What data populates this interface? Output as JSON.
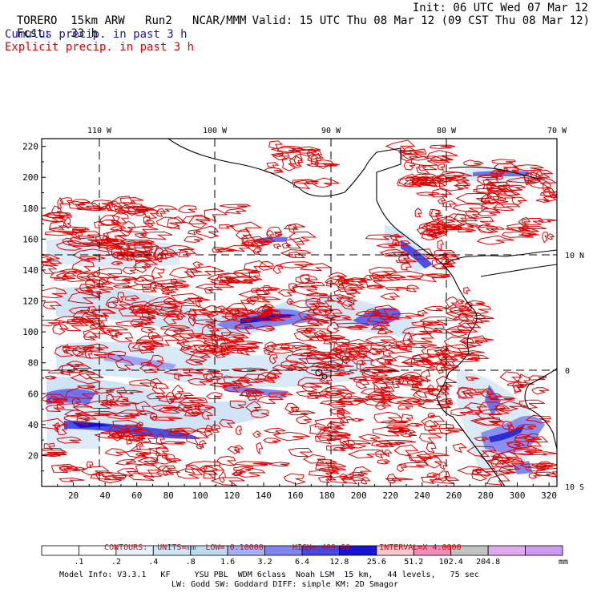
{
  "header": {
    "model_name": "TORERO",
    "resolution": "15km ARW",
    "run": "Run2",
    "org": "NCAR/MMM",
    "init": "Init: 06 UTC Wed 07 Mar 12",
    "fcst_label": "Fcst:",
    "fcst_value": "33 h",
    "valid": "Valid: 15 UTC Thu 08 Mar 12 (09 CST Thu 08 Mar 12)",
    "line_cumulus": "Cumulus precip. in past 3 h",
    "line_explicit": "Explicit precip. in past 3 h"
  },
  "top_lon_labels": [
    "110 W",
    "100 W",
    "90 W",
    "80 W",
    "70 W"
  ],
  "right_lat_labels": [
    "10 N",
    "0",
    "10 S"
  ],
  "left_y_ticks": [
    "220",
    "200",
    "180",
    "160",
    "140",
    "120",
    "100",
    "80",
    "60",
    "40",
    "20"
  ],
  "bottom_x_ticks": [
    "20",
    "40",
    "60",
    "80",
    "100",
    "120",
    "140",
    "160",
    "180",
    "200",
    "220",
    "240",
    "260",
    "280",
    "300",
    "320"
  ],
  "contour_info": {
    "contours": "CONTOURS:",
    "units": "UNITS=mm",
    "low": "LOW= 0.10000",
    "high": "HIGH= 409.60",
    "interval": "INTERVAL=X 4.0000"
  },
  "legend": {
    "values": [
      ".1",
      ".2",
      ".4",
      ".8",
      "1.6",
      "3.2",
      "6.4",
      "12.8",
      "25.6",
      "51.2",
      "102.4",
      "204.8"
    ],
    "unit": "mm",
    "colors": [
      "#ffffff",
      "#ffffff",
      "#e6f2fb",
      "#cde6f7",
      "#b8dcf2",
      "#aab0f5",
      "#7f85f0",
      "#4747e6",
      "#1414d6",
      "#f5c9cf",
      "#f28bb9",
      "#c2c2c2",
      "#e0a8ee",
      "#d19af2"
    ]
  },
  "model_info": {
    "line1": "Model Info: V3.3.1   KF     YSU PBL  WDM 6class  Noah LSM  15 km,   44 levels,   75 sec",
    "line2": "LW: Godd SW: Goddard DIFF: simple KM: 2D Smagor"
  }
}
